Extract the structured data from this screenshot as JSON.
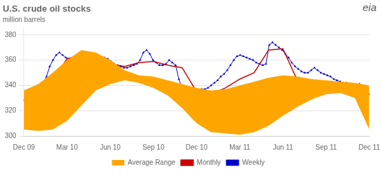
{
  "chart_data": {
    "type": "line",
    "title": "U.S. crude oil stocks",
    "subtitle": "million barrels",
    "annotations": [
      "eia"
    ],
    "x": [
      0,
      1,
      2,
      3,
      4,
      5,
      6,
      7,
      8,
      9,
      10,
      11,
      12,
      13,
      14,
      15,
      16,
      17,
      18,
      19,
      20,
      21,
      22,
      23,
      24
    ],
    "xlim": [
      0,
      24
    ],
    "xticks": [
      {
        "value": 0,
        "label": "Dec 09"
      },
      {
        "value": 3,
        "label": "Mar 10"
      },
      {
        "value": 6,
        "label": "Jun 10"
      },
      {
        "value": 9,
        "label": "Sep 10"
      },
      {
        "value": 12,
        "label": "Dec 10"
      },
      {
        "value": 15,
        "label": "Mar 11"
      },
      {
        "value": 18,
        "label": "Jun 11"
      },
      {
        "value": 21,
        "label": "Sep 11"
      },
      {
        "value": 24,
        "label": "Dec 11"
      }
    ],
    "ylim": [
      300,
      385
    ],
    "yticks": [
      300,
      320,
      340,
      360,
      380
    ],
    "grid": "y",
    "legend": "bottom",
    "series": [
      {
        "name": "Average Range",
        "type": "band",
        "color": "#FFA500",
        "lower": [
          305,
          304,
          305,
          312,
          324,
          336,
          341,
          344,
          342,
          338,
          332,
          322,
          310,
          303,
          302,
          301,
          303,
          308,
          316,
          323,
          329,
          333,
          334,
          330,
          305
        ],
        "upper": [
          336,
          341,
          350,
          360,
          368,
          366,
          360,
          352,
          348,
          347,
          344,
          341,
          338,
          336,
          337,
          340,
          343,
          346,
          348,
          347,
          345,
          344,
          343,
          342,
          340
        ]
      },
      {
        "name": "Monthly",
        "type": "line",
        "color": "#cc0000",
        "values": [
          328,
          334,
          344,
          361,
          364,
          361,
          357,
          355,
          358,
          359,
          356,
          354,
          335,
          333,
          338,
          345,
          350,
          368,
          369,
          344,
          342,
          341,
          341,
          340,
          332
        ]
      },
      {
        "name": "Weekly",
        "type": "line",
        "color": "#0000cc",
        "marker": "triangle",
        "x": [
          0,
          0.2243,
          0.4486,
          0.6729,
          0.8972,
          1.1215,
          1.3458,
          1.5701,
          1.7944,
          2.0187,
          2.243,
          2.4673,
          2.6916,
          2.9159,
          3.1402,
          3.3645,
          3.5888,
          3.8131,
          4.0374,
          4.2617,
          4.486,
          4.7103,
          4.9346,
          5.1589,
          5.3832,
          5.6075,
          5.8318,
          6.0561,
          6.2804,
          6.5047,
          6.729,
          6.9533,
          7.1776,
          7.4019,
          7.6262,
          7.8505,
          8.0748,
          8.2991,
          8.5234,
          8.7477,
          8.972,
          9.1963,
          9.4206,
          9.6449,
          9.8692,
          10.0935,
          10.3178,
          10.5421,
          10.7664,
          10.9907,
          11.215,
          11.4393,
          11.6636,
          11.8879,
          12.1121,
          12.3364,
          12.5607,
          12.785,
          13.0093,
          13.2336,
          13.4579,
          13.6822,
          13.9065,
          14.1308,
          14.3551,
          14.5794,
          14.8037,
          15.028,
          15.2523,
          15.4766,
          15.7009,
          15.9252,
          16.1495,
          16.3738,
          16.5981,
          16.8224,
          17.0467,
          17.271,
          17.4953,
          17.7196,
          17.9439,
          18.1682,
          18.3925,
          18.6168,
          18.8411,
          19.0654,
          19.2897,
          19.514,
          19.7383,
          19.9626,
          20.1869,
          20.4112,
          20.6355,
          20.8598,
          21.0841,
          21.3084,
          21.5327,
          21.757,
          21.9813,
          22.2056,
          22.4299,
          22.6542,
          22.8785,
          23.1028,
          23.3271,
          23.5514,
          23.7757,
          24
        ],
        "values": [
          328,
          325,
          327,
          330,
          333,
          337,
          341,
          347,
          355,
          360,
          364,
          366,
          364,
          362,
          361,
          360,
          360,
          358,
          356,
          355,
          354,
          355,
          357,
          358,
          360,
          362,
          361,
          359,
          357,
          356,
          355,
          354,
          354,
          355,
          356,
          357,
          360,
          366,
          368,
          365,
          360,
          358,
          356,
          356,
          357,
          360,
          358,
          356,
          345,
          338,
          336,
          334,
          334,
          335,
          336,
          337,
          337,
          338,
          340,
          342,
          344,
          347,
          349,
          352,
          356,
          360,
          363,
          364,
          363,
          362,
          361,
          360,
          358,
          357,
          356,
          357,
          372,
          374,
          372,
          370,
          368,
          365,
          362,
          358,
          355,
          353,
          351,
          350,
          350,
          352,
          354,
          352,
          350,
          349,
          348,
          347,
          345,
          344,
          343,
          342,
          342,
          341,
          340,
          340,
          341,
          340,
          338,
          333
        ]
      }
    ]
  }
}
